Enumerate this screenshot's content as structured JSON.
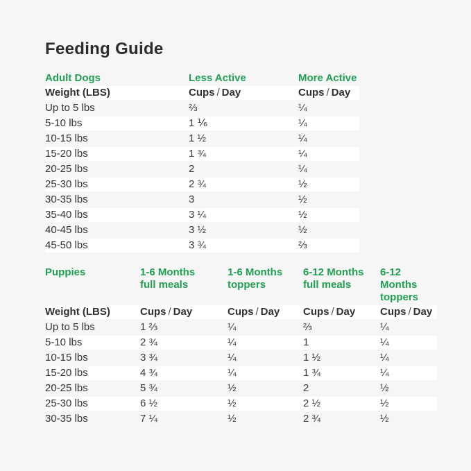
{
  "title": "Feeding Guide",
  "colors": {
    "green": "#21a052",
    "text": "#2f3130",
    "background": "#f6f6f6",
    "stripe": "#ffffff"
  },
  "weight_header": "Weight (LBS)",
  "unit_header": {
    "cups": "Cups",
    "sep": "/",
    "day": "Day"
  },
  "adult": {
    "section_label": "Adult Dogs",
    "columns": [
      "Less Active",
      "More Active"
    ],
    "rows": [
      [
        "Up to 5 lbs",
        "⅔",
        "¼"
      ],
      [
        "5-10 lbs",
        "1 ⅙",
        "¼"
      ],
      [
        "10-15 lbs",
        "1 ½",
        "¼"
      ],
      [
        "15-20 lbs",
        "1 ¾",
        "¼"
      ],
      [
        "20-25 lbs",
        "2",
        "¼"
      ],
      [
        "25-30 lbs",
        "2 ¾",
        "½"
      ],
      [
        "30-35 lbs",
        "3",
        "½"
      ],
      [
        "35-40 lbs",
        "3 ¼",
        "½"
      ],
      [
        "40-45 lbs",
        "3 ½",
        "½"
      ],
      [
        "45-50 lbs",
        "3 ¾",
        "⅔"
      ]
    ]
  },
  "puppies": {
    "section_label": "Puppies",
    "columns": [
      "1-6 Months\nfull meals",
      "1-6 Months\ntoppers",
      "6-12 Months\nfull meals",
      "6-12 Months\ntoppers"
    ],
    "rows": [
      [
        "Up to 5 lbs",
        "1 ⅔",
        "¼",
        "⅔",
        "¼"
      ],
      [
        "5-10 lbs",
        "2 ¾",
        "¼",
        "1",
        "¼"
      ],
      [
        "10-15 lbs",
        "3 ¾",
        "¼",
        "1 ½",
        "¼"
      ],
      [
        "15-20 lbs",
        "4 ¾",
        "¼",
        "1 ¾",
        "¼"
      ],
      [
        "20-25 lbs",
        "5 ¾",
        "½",
        "2",
        "½"
      ],
      [
        "25-30 lbs",
        "6 ½",
        "½",
        "2 ½",
        "½"
      ],
      [
        "30-35 lbs",
        "7 ¼",
        "½",
        "2 ¾",
        "½"
      ]
    ]
  }
}
